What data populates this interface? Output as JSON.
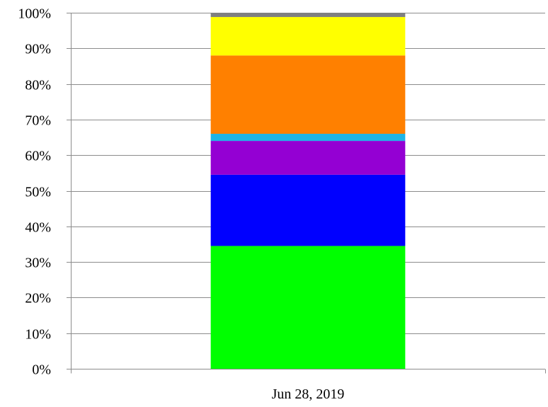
{
  "chart_data": {
    "type": "bar",
    "stacked": true,
    "percent_stacked": true,
    "title": "",
    "xlabel": "",
    "ylabel": "",
    "ylim": [
      0,
      100
    ],
    "y_ticks": [
      "0%",
      "10%",
      "20%",
      "30%",
      "40%",
      "50%",
      "60%",
      "70%",
      "80%",
      "90%",
      "100%"
    ],
    "grid": true,
    "legend": "none",
    "categories": [
      "Jun 28, 2019"
    ],
    "series": [
      {
        "color": "#00ff00",
        "values": [
          34.5
        ]
      },
      {
        "color": "#0000ff",
        "values": [
          20.0
        ]
      },
      {
        "color": "#9400d3",
        "values": [
          9.5
        ]
      },
      {
        "color": "#1eb4e6",
        "values": [
          2.0
        ]
      },
      {
        "color": "#ff8000",
        "values": [
          22.0
        ]
      },
      {
        "color": "#ffff00",
        "values": [
          10.8
        ]
      },
      {
        "color": "#808080",
        "values": [
          1.2
        ]
      }
    ]
  }
}
